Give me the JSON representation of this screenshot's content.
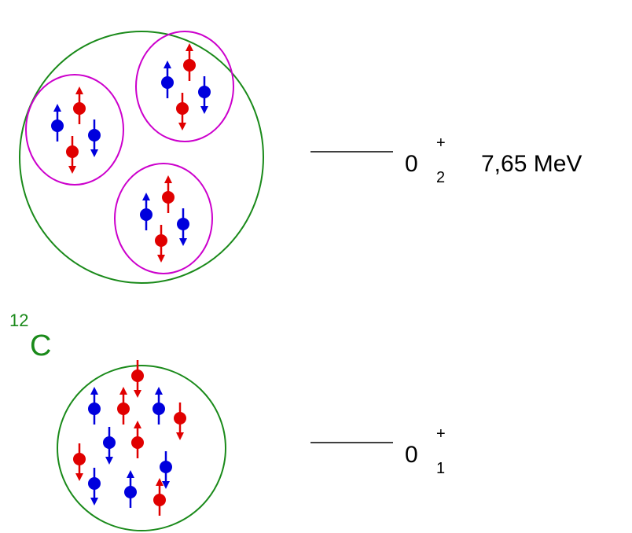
{
  "nucleus": {
    "mass_number": "12",
    "symbol": "C"
  },
  "levels": [
    {
      "spin": "0",
      "parity": "+",
      "index": "2",
      "energy": "7,65 MeV"
    },
    {
      "spin": "0",
      "parity": "+",
      "index": "1"
    }
  ]
}
